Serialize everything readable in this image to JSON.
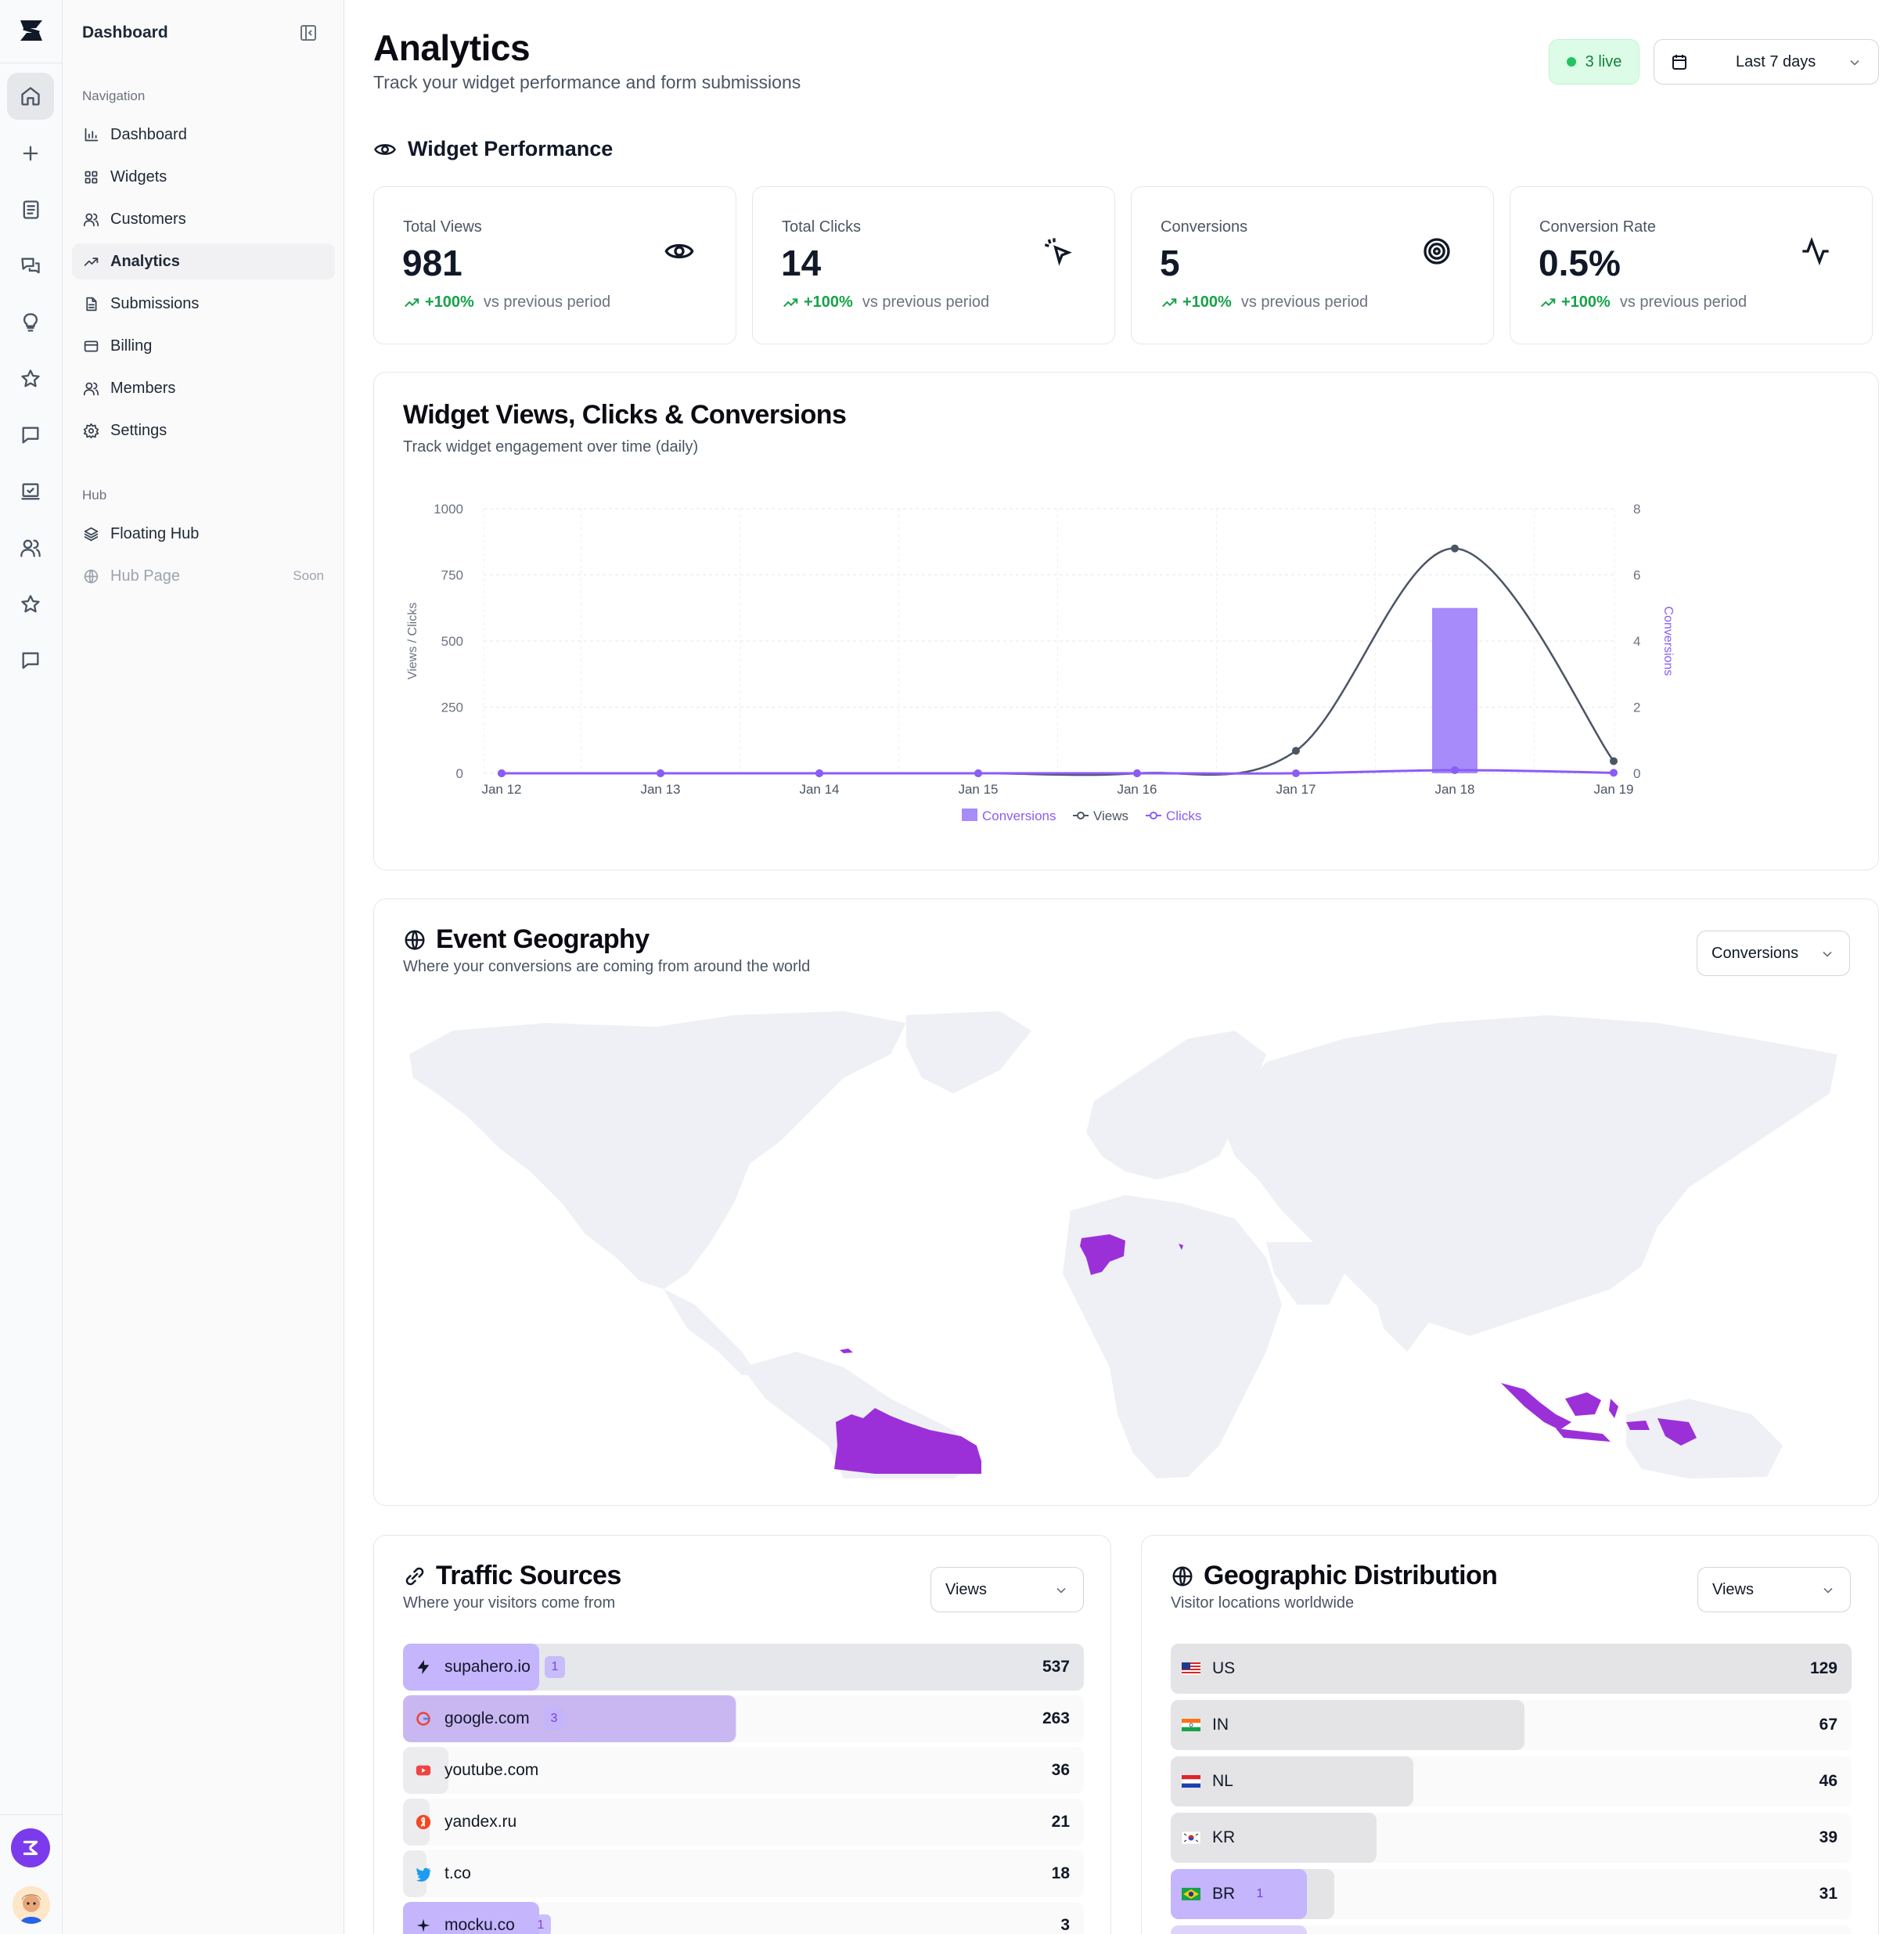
{
  "sidebar": {
    "title": "Dashboard",
    "nav_label": "Navigation",
    "nav_items": [
      {
        "label": "Dashboard",
        "icon": "bar-chart-icon"
      },
      {
        "label": "Widgets",
        "icon": "grid-icon"
      },
      {
        "label": "Customers",
        "icon": "users-icon"
      },
      {
        "label": "Analytics",
        "icon": "trending-up-icon",
        "active": true
      },
      {
        "label": "Submissions",
        "icon": "file-text-icon"
      },
      {
        "label": "Billing",
        "icon": "credit-card-icon"
      },
      {
        "label": "Members",
        "icon": "users-icon"
      },
      {
        "label": "Settings",
        "icon": "gear-icon"
      }
    ],
    "hub_label": "Hub",
    "hub_items": [
      {
        "label": "Floating Hub",
        "icon": "layers-icon"
      },
      {
        "label": "Hub Page",
        "icon": "globe-icon",
        "badge": "Soon",
        "disabled": true
      }
    ]
  },
  "header": {
    "title": "Analytics",
    "subtitle": "Track your widget performance and form submissions",
    "live_badge": "3 live",
    "date_range": "Last 7 days"
  },
  "widget_performance": {
    "title": "Widget Performance",
    "cards": [
      {
        "label": "Total Views",
        "value": "981",
        "change": "+100%",
        "vs": "vs previous period",
        "icon": "eye-icon"
      },
      {
        "label": "Total Clicks",
        "value": "14",
        "change": "+100%",
        "vs": "vs previous period",
        "icon": "pointer-click-icon"
      },
      {
        "label": "Conversions",
        "value": "5",
        "change": "+100%",
        "vs": "vs previous period",
        "icon": "target-icon"
      },
      {
        "label": "Conversion Rate",
        "value": "0.5%",
        "change": "+100%",
        "vs": "vs previous period",
        "icon": "activity-icon"
      }
    ]
  },
  "chart_data": {
    "type": "line",
    "title": "Widget Views, Clicks & Conversions",
    "subtitle": "Track widget engagement over time (daily)",
    "categories": [
      "Jan 12",
      "Jan 13",
      "Jan 14",
      "Jan 15",
      "Jan 16",
      "Jan 17",
      "Jan 18",
      "Jan 19"
    ],
    "ylabel": "Views / Clicks",
    "ylabel_right": "Conversions",
    "ylim": [
      0,
      1000
    ],
    "ylim_right": [
      0,
      8
    ],
    "yticks": [
      "1000",
      "750",
      "500",
      "250",
      "0"
    ],
    "yticks_right": [
      "8",
      "6",
      "4",
      "2",
      "0"
    ],
    "grid": true,
    "legend_position": "bottom",
    "series": [
      {
        "name": "Conversions",
        "type": "bar",
        "axis": "right",
        "color": "#a78bfa",
        "values": [
          0,
          0,
          0,
          0,
          0,
          0,
          5,
          0
        ]
      },
      {
        "name": "Views",
        "type": "line",
        "axis": "left",
        "color": "#4b5563",
        "values": [
          0,
          0,
          0,
          0,
          0,
          85,
          850,
          46
        ]
      },
      {
        "name": "Clicks",
        "type": "line",
        "axis": "left",
        "color": "#8b5cf6",
        "values": [
          0,
          0,
          0,
          0,
          0,
          0,
          12,
          2
        ]
      }
    ]
  },
  "geography": {
    "title": "Event Geography",
    "subtitle": "Where your conversions are coming from around the world",
    "metric": "Conversions",
    "highlight_color": "#9b30d9",
    "land_color": "#eef0f5"
  },
  "traffic_sources": {
    "title": "Traffic Sources",
    "subtitle": "Where your visitors come from",
    "metric": "Views",
    "rows": [
      {
        "name": "supahero.io",
        "badge": "1",
        "count": "537",
        "value": 537,
        "icon": "bolt-icon"
      },
      {
        "name": "google.com",
        "badge": "3",
        "count": "263",
        "value": 263,
        "icon": "google-icon"
      },
      {
        "name": "youtube.com",
        "count": "36",
        "value": 36,
        "icon": "youtube-icon"
      },
      {
        "name": "yandex.ru",
        "count": "21",
        "value": 21,
        "icon": "yandex-icon"
      },
      {
        "name": "t.co",
        "count": "18",
        "value": 18,
        "icon": "twitter-icon"
      },
      {
        "name": "mocku.co",
        "badge": "1",
        "count": "3",
        "value": 3,
        "icon": "sparkle-icon"
      }
    ]
  },
  "geo_distribution": {
    "title": "Geographic Distribution",
    "subtitle": "Visitor locations worldwide",
    "metric": "Views",
    "rows": [
      {
        "code": "US",
        "count": "129",
        "value": 129,
        "icon": "flag-us-icon"
      },
      {
        "code": "IN",
        "count": "67",
        "value": 67,
        "icon": "flag-in-icon"
      },
      {
        "code": "NL",
        "count": "46",
        "value": 46,
        "icon": "flag-nl-icon"
      },
      {
        "code": "KR",
        "count": "39",
        "value": 39,
        "icon": "flag-kr-icon"
      },
      {
        "code": "BR",
        "badge": "1",
        "count": "31",
        "value": 31,
        "icon": "flag-br-icon"
      }
    ]
  }
}
